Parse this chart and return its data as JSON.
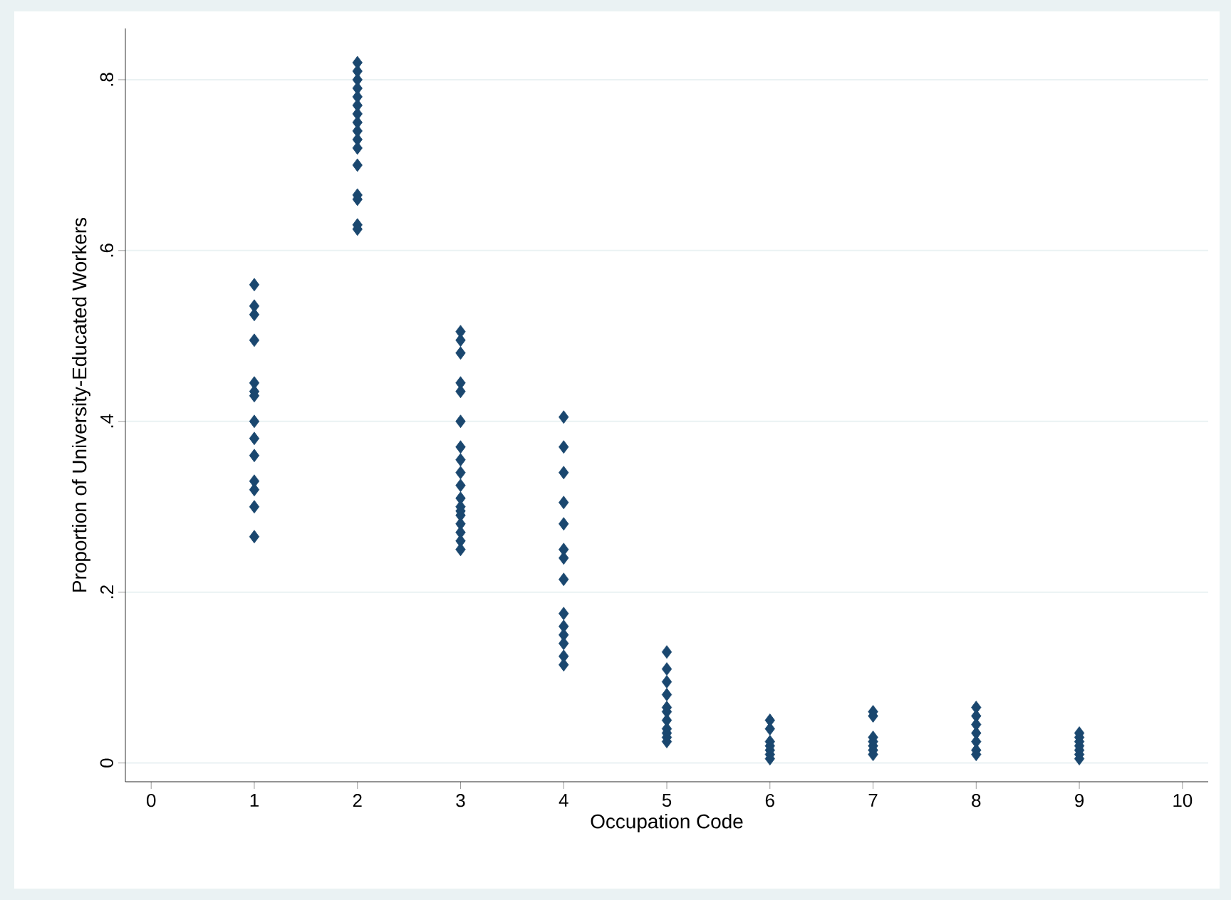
{
  "chart_data": {
    "type": "scatter",
    "xlabel": "Occupation Code",
    "ylabel": "Proportion of University-Educated Workers",
    "series": [
      {
        "color": "#1a476f",
        "x": [
          1,
          1,
          1,
          1,
          1,
          1,
          1,
          1,
          1,
          1,
          1,
          1,
          1,
          1,
          2,
          2,
          2,
          2,
          2,
          2,
          2,
          2,
          2,
          2,
          2,
          2,
          2,
          2,
          2,
          2,
          3,
          3,
          3,
          3,
          3,
          3,
          3,
          3,
          3,
          3,
          3,
          3,
          3,
          3,
          3,
          3,
          3,
          3,
          4,
          4,
          4,
          4,
          4,
          4,
          4,
          4,
          4,
          4,
          4,
          4,
          4,
          4,
          5,
          5,
          5,
          5,
          5,
          5,
          5,
          5,
          5,
          5,
          5,
          6,
          6,
          6,
          6,
          6,
          6,
          6,
          7,
          7,
          7,
          7,
          7,
          7,
          7,
          8,
          8,
          8,
          8,
          8,
          8,
          8,
          9,
          9,
          9,
          9,
          9,
          9,
          9
        ],
        "values": [
          0.56,
          0.535,
          0.525,
          0.495,
          0.445,
          0.435,
          0.43,
          0.4,
          0.38,
          0.36,
          0.33,
          0.32,
          0.3,
          0.265,
          0.82,
          0.81,
          0.8,
          0.79,
          0.78,
          0.77,
          0.76,
          0.75,
          0.74,
          0.73,
          0.72,
          0.7,
          0.665,
          0.66,
          0.63,
          0.625,
          0.505,
          0.495,
          0.48,
          0.445,
          0.435,
          0.4,
          0.37,
          0.355,
          0.34,
          0.325,
          0.31,
          0.3,
          0.295,
          0.29,
          0.28,
          0.27,
          0.26,
          0.25,
          0.405,
          0.37,
          0.34,
          0.305,
          0.28,
          0.25,
          0.24,
          0.215,
          0.175,
          0.16,
          0.15,
          0.14,
          0.125,
          0.115,
          0.13,
          0.11,
          0.095,
          0.08,
          0.065,
          0.06,
          0.05,
          0.04,
          0.035,
          0.03,
          0.025,
          0.05,
          0.04,
          0.025,
          0.02,
          0.015,
          0.01,
          0.005,
          0.06,
          0.055,
          0.03,
          0.025,
          0.02,
          0.015,
          0.01,
          0.065,
          0.055,
          0.045,
          0.035,
          0.025,
          0.015,
          0.01,
          0.035,
          0.03,
          0.025,
          0.02,
          0.015,
          0.01,
          0.005
        ]
      }
    ],
    "xlim": [
      -0.25,
      10.25
    ],
    "ylim": [
      -0.022,
      0.86
    ],
    "xticks": [
      0,
      1,
      2,
      3,
      4,
      5,
      6,
      7,
      8,
      9,
      10
    ],
    "yticks": [
      {
        "value": 0,
        "label": "0"
      },
      {
        "value": 0.2,
        "label": ".2"
      },
      {
        "value": 0.4,
        "label": ".4"
      },
      {
        "value": 0.6,
        "label": ".6"
      },
      {
        "value": 0.8,
        "label": ".8"
      }
    ],
    "grid": "y",
    "marker": "diamond"
  }
}
